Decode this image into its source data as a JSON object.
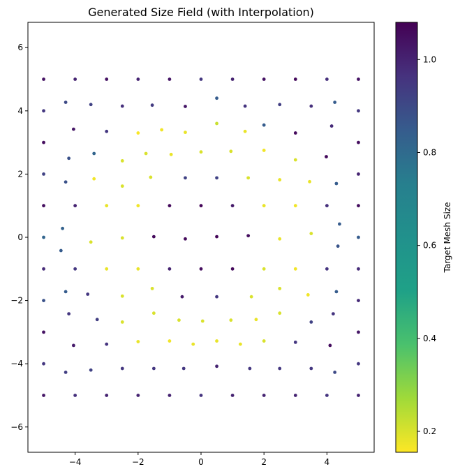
{
  "chart_data": {
    "type": "scatter",
    "title": "Generated Size Field (with Interpolation)",
    "xlabel": "",
    "ylabel": "",
    "xlim": [
      -5.5,
      5.5
    ],
    "ylim": [
      -6.8,
      6.8
    ],
    "xticks": [
      -4,
      -2,
      0,
      2,
      4
    ],
    "xtick_labels": [
      "−4",
      "−2",
      "0",
      "2",
      "4"
    ],
    "yticks": [
      -6,
      -4,
      -2,
      0,
      2,
      4,
      6
    ],
    "ytick_labels": [
      "−6",
      "−4",
      "−2",
      "0",
      "2",
      "4",
      "6"
    ],
    "grid": false,
    "colormap": "viridis_r",
    "colorbar": {
      "label": "Target Mesh Size",
      "range": [
        0.155,
        1.08
      ],
      "ticks": [
        0.2,
        0.4,
        0.6,
        0.8,
        1.0
      ],
      "tick_labels": [
        "0.2",
        "0.4",
        "0.6",
        "0.8",
        "1.0"
      ]
    },
    "points": [
      {
        "x": -5,
        "y": 5,
        "c": 1.04
      },
      {
        "x": -4,
        "y": 5,
        "c": 1.0
      },
      {
        "x": -3,
        "y": 5,
        "c": 1.04
      },
      {
        "x": -2,
        "y": 5,
        "c": 1.0
      },
      {
        "x": -1,
        "y": 5,
        "c": 1.03
      },
      {
        "x": 0,
        "y": 5,
        "c": 0.95
      },
      {
        "x": 1,
        "y": 5,
        "c": 1.0
      },
      {
        "x": 2,
        "y": 5,
        "c": 1.04
      },
      {
        "x": 3,
        "y": 5,
        "c": 1.06
      },
      {
        "x": 4,
        "y": 5,
        "c": 0.97
      },
      {
        "x": 5,
        "y": 5,
        "c": 1.04
      },
      {
        "x": -5,
        "y": 4,
        "c": 0.95
      },
      {
        "x": -4.3,
        "y": 4.27,
        "c": 0.9
      },
      {
        "x": -3.5,
        "y": 4.2,
        "c": 0.92
      },
      {
        "x": -2.5,
        "y": 4.15,
        "c": 0.97
      },
      {
        "x": -1.55,
        "y": 4.18,
        "c": 0.94
      },
      {
        "x": -0.5,
        "y": 4.14,
        "c": 1.03
      },
      {
        "x": 0.5,
        "y": 4.4,
        "c": 0.85
      },
      {
        "x": 1.4,
        "y": 4.15,
        "c": 0.96
      },
      {
        "x": 2.5,
        "y": 4.2,
        "c": 0.93
      },
      {
        "x": 3.5,
        "y": 4.15,
        "c": 0.97
      },
      {
        "x": 4.25,
        "y": 4.27,
        "c": 0.85
      },
      {
        "x": 5,
        "y": 4,
        "c": 0.95
      },
      {
        "x": -5,
        "y": 3,
        "c": 1.05
      },
      {
        "x": -4.05,
        "y": 3.42,
        "c": 1.03
      },
      {
        "x": -3,
        "y": 3.35,
        "c": 0.95
      },
      {
        "x": -2,
        "y": 3.3,
        "c": 0.16
      },
      {
        "x": -1.25,
        "y": 3.4,
        "c": 0.17
      },
      {
        "x": -0.5,
        "y": 3.32,
        "c": 0.18
      },
      {
        "x": 0.5,
        "y": 3.6,
        "c": 0.22
      },
      {
        "x": 1.4,
        "y": 3.35,
        "c": 0.18
      },
      {
        "x": 2,
        "y": 3.55,
        "c": 0.85
      },
      {
        "x": 3,
        "y": 3.3,
        "c": 1.06
      },
      {
        "x": 4.15,
        "y": 3.52,
        "c": 0.98
      },
      {
        "x": 5,
        "y": 3,
        "c": 1.05
      },
      {
        "x": -4.2,
        "y": 2.5,
        "c": 0.88
      },
      {
        "x": -3.4,
        "y": 2.65,
        "c": 0.82
      },
      {
        "x": -2.5,
        "y": 2.42,
        "c": 0.2
      },
      {
        "x": -1.75,
        "y": 2.65,
        "c": 0.2
      },
      {
        "x": -0.95,
        "y": 2.62,
        "c": 0.18
      },
      {
        "x": 0,
        "y": 2.7,
        "c": 0.2
      },
      {
        "x": 0.95,
        "y": 2.72,
        "c": 0.2
      },
      {
        "x": 2,
        "y": 2.75,
        "c": 0.17
      },
      {
        "x": 3,
        "y": 2.45,
        "c": 0.2
      },
      {
        "x": 3.98,
        "y": 2.55,
        "c": 1.06
      },
      {
        "x": -5,
        "y": 2,
        "c": 0.92
      },
      {
        "x": 5,
        "y": 2,
        "c": 1.0
      },
      {
        "x": -4.3,
        "y": 1.75,
        "c": 0.88
      },
      {
        "x": -3.4,
        "y": 1.85,
        "c": 0.17
      },
      {
        "x": -2.5,
        "y": 1.62,
        "c": 0.2
      },
      {
        "x": -1.6,
        "y": 1.9,
        "c": 0.2
      },
      {
        "x": -0.5,
        "y": 1.88,
        "c": 0.92
      },
      {
        "x": 0.5,
        "y": 1.88,
        "c": 0.92
      },
      {
        "x": 1.5,
        "y": 1.88,
        "c": 0.2
      },
      {
        "x": 2.5,
        "y": 1.82,
        "c": 0.18
      },
      {
        "x": 3.45,
        "y": 1.76,
        "c": 0.18
      },
      {
        "x": 4.3,
        "y": 1.7,
        "c": 0.85
      },
      {
        "x": -5,
        "y": 1,
        "c": 1.05
      },
      {
        "x": -4,
        "y": 1,
        "c": 1.0
      },
      {
        "x": -3,
        "y": 1,
        "c": 0.18
      },
      {
        "x": -2,
        "y": 1,
        "c": 0.17
      },
      {
        "x": -1,
        "y": 1,
        "c": 1.06
      },
      {
        "x": 0,
        "y": 1,
        "c": 1.07
      },
      {
        "x": 1,
        "y": 1,
        "c": 1.02
      },
      {
        "x": 2,
        "y": 1,
        "c": 0.18
      },
      {
        "x": 3,
        "y": 1,
        "c": 0.17
      },
      {
        "x": 4,
        "y": 1,
        "c": 0.97
      },
      {
        "x": 5,
        "y": 1,
        "c": 1.05
      },
      {
        "x": -5,
        "y": 0,
        "c": 0.82
      },
      {
        "x": -4.4,
        "y": 0.28,
        "c": 0.83
      },
      {
        "x": -4.45,
        "y": -0.42,
        "c": 0.85
      },
      {
        "x": -3.5,
        "y": -0.15,
        "c": 0.2
      },
      {
        "x": -2.5,
        "y": -0.02,
        "c": 0.2
      },
      {
        "x": -1.5,
        "y": 0.02,
        "c": 1.06
      },
      {
        "x": -0.5,
        "y": -0.05,
        "c": 1.06
      },
      {
        "x": 0.5,
        "y": 0.02,
        "c": 1.07
      },
      {
        "x": 1.5,
        "y": 0.05,
        "c": 1.05
      },
      {
        "x": 2.5,
        "y": -0.05,
        "c": 0.18
      },
      {
        "x": 3.5,
        "y": 0.12,
        "c": 0.2
      },
      {
        "x": 4.4,
        "y": 0.42,
        "c": 0.85
      },
      {
        "x": 4.35,
        "y": -0.28,
        "c": 0.87
      },
      {
        "x": 5,
        "y": 0,
        "c": 0.85
      },
      {
        "x": -5,
        "y": -1,
        "c": 0.98
      },
      {
        "x": -4,
        "y": -1,
        "c": 0.95
      },
      {
        "x": -3,
        "y": -1,
        "c": 0.18
      },
      {
        "x": -2,
        "y": -1,
        "c": 0.18
      },
      {
        "x": -1,
        "y": -1,
        "c": 1.0
      },
      {
        "x": 0,
        "y": -1,
        "c": 1.05
      },
      {
        "x": 1,
        "y": -1,
        "c": 1.06
      },
      {
        "x": 2,
        "y": -1,
        "c": 0.2
      },
      {
        "x": 3,
        "y": -1,
        "c": 0.17
      },
      {
        "x": 4,
        "y": -1,
        "c": 0.96
      },
      {
        "x": 5,
        "y": -1,
        "c": 0.98
      },
      {
        "x": -5,
        "y": -2,
        "c": 0.88
      },
      {
        "x": -4.3,
        "y": -1.72,
        "c": 0.85
      },
      {
        "x": -3.6,
        "y": -1.8,
        "c": 0.95
      },
      {
        "x": -2.5,
        "y": -1.86,
        "c": 0.2
      },
      {
        "x": -1.55,
        "y": -1.62,
        "c": 0.2
      },
      {
        "x": -0.6,
        "y": -1.88,
        "c": 1.02
      },
      {
        "x": 0.5,
        "y": -1.88,
        "c": 0.95
      },
      {
        "x": 1.6,
        "y": -1.88,
        "c": 0.2
      },
      {
        "x": 2.5,
        "y": -1.62,
        "c": 0.2
      },
      {
        "x": 3.4,
        "y": -1.82,
        "c": 0.17
      },
      {
        "x": 4.3,
        "y": -1.72,
        "c": 0.85
      },
      {
        "x": 5,
        "y": -2,
        "c": 0.98
      },
      {
        "x": -4.2,
        "y": -2.42,
        "c": 0.95
      },
      {
        "x": -3.3,
        "y": -2.6,
        "c": 0.93
      },
      {
        "x": -2.5,
        "y": -2.68,
        "c": 0.2
      },
      {
        "x": -1.5,
        "y": -2.4,
        "c": 0.2
      },
      {
        "x": -0.7,
        "y": -2.62,
        "c": 0.2
      },
      {
        "x": 0.05,
        "y": -2.65,
        "c": 0.2
      },
      {
        "x": 0.95,
        "y": -2.62,
        "c": 0.2
      },
      {
        "x": 1.75,
        "y": -2.6,
        "c": 0.18
      },
      {
        "x": 2.5,
        "y": -2.4,
        "c": 0.2
      },
      {
        "x": 3.5,
        "y": -2.68,
        "c": 0.92
      },
      {
        "x": 4.2,
        "y": -2.42,
        "c": 0.96
      },
      {
        "x": -5,
        "y": -3,
        "c": 1.04
      },
      {
        "x": -4.05,
        "y": -3.42,
        "c": 1.02
      },
      {
        "x": -3,
        "y": -3.38,
        "c": 0.96
      },
      {
        "x": -2,
        "y": -3.3,
        "c": 0.18
      },
      {
        "x": -1,
        "y": -3.28,
        "c": 0.17
      },
      {
        "x": -0.25,
        "y": -3.38,
        "c": 0.18
      },
      {
        "x": 0.5,
        "y": -3.28,
        "c": 0.18
      },
      {
        "x": 1.25,
        "y": -3.38,
        "c": 0.18
      },
      {
        "x": 2,
        "y": -3.28,
        "c": 0.2
      },
      {
        "x": 3,
        "y": -3.32,
        "c": 0.95
      },
      {
        "x": 4.1,
        "y": -3.42,
        "c": 1.05
      },
      {
        "x": 5,
        "y": -3,
        "c": 1.03
      },
      {
        "x": -5,
        "y": -4,
        "c": 0.95
      },
      {
        "x": -4.3,
        "y": -4.27,
        "c": 0.93
      },
      {
        "x": -3.5,
        "y": -4.2,
        "c": 0.92
      },
      {
        "x": -2.5,
        "y": -4.15,
        "c": 0.95
      },
      {
        "x": -1.5,
        "y": -4.15,
        "c": 0.95
      },
      {
        "x": -0.55,
        "y": -4.15,
        "c": 0.95
      },
      {
        "x": 0.5,
        "y": -4.08,
        "c": 1.0
      },
      {
        "x": 1.55,
        "y": -4.15,
        "c": 0.95
      },
      {
        "x": 2.5,
        "y": -4.15,
        "c": 0.95
      },
      {
        "x": 3.5,
        "y": -4.15,
        "c": 0.95
      },
      {
        "x": 4.25,
        "y": -4.27,
        "c": 0.9
      },
      {
        "x": 5,
        "y": -4,
        "c": 0.95
      },
      {
        "x": -5,
        "y": -5,
        "c": 1.03
      },
      {
        "x": -4,
        "y": -5,
        "c": 0.97
      },
      {
        "x": -3,
        "y": -5,
        "c": 1.0
      },
      {
        "x": -2,
        "y": -5,
        "c": 1.0
      },
      {
        "x": -1,
        "y": -5,
        "c": 1.0
      },
      {
        "x": 0,
        "y": -5,
        "c": 0.96
      },
      {
        "x": 1,
        "y": -5,
        "c": 1.0
      },
      {
        "x": 2,
        "y": -5,
        "c": 1.0
      },
      {
        "x": 3,
        "y": -5,
        "c": 1.0
      },
      {
        "x": 4,
        "y": -5,
        "c": 0.96
      },
      {
        "x": 5,
        "y": -5,
        "c": 1.0
      }
    ]
  }
}
